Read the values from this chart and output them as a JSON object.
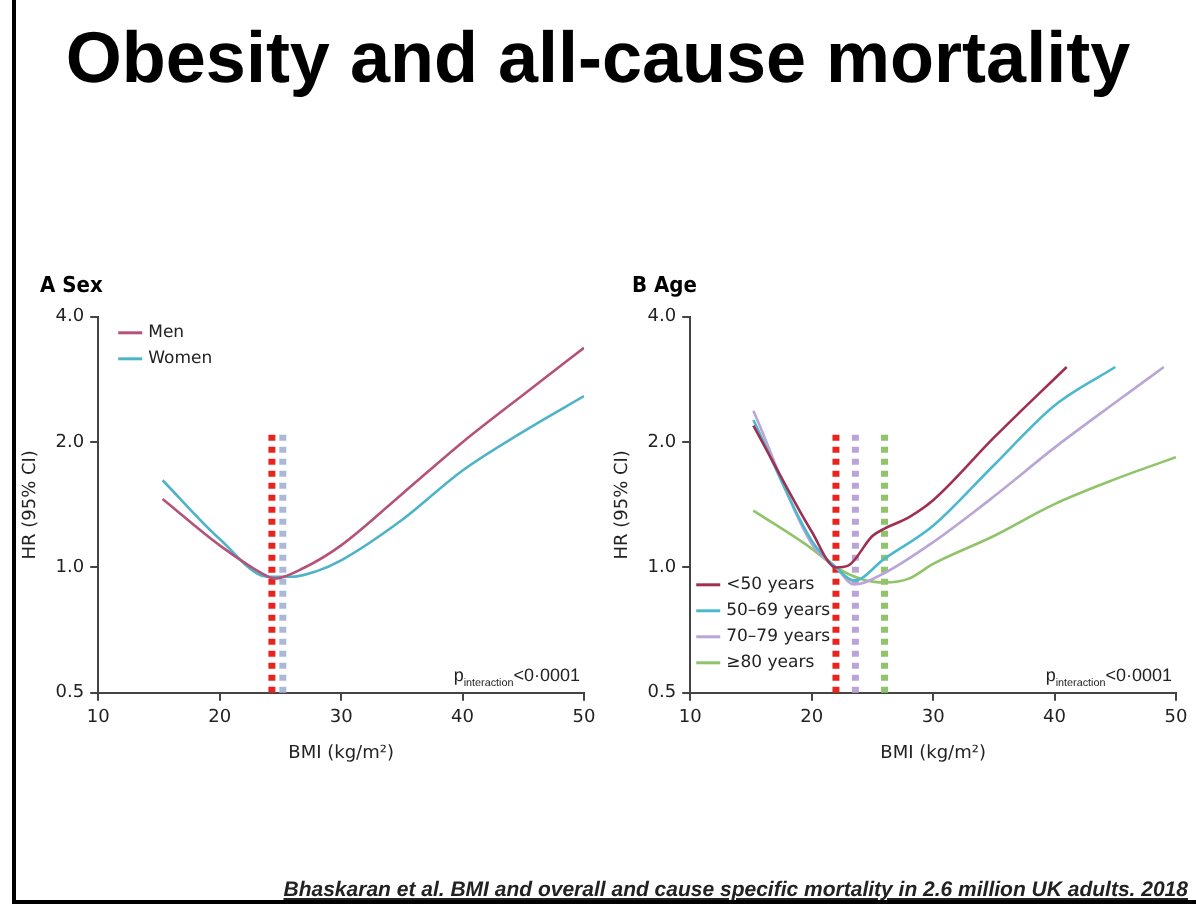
{
  "chart_data": [
    {
      "type": "line",
      "title": "Obesity and all-cause mortality",
      "subtitle": "A  Sex",
      "xlabel": "BMI (kg/m²)",
      "ylabel": "HR (95% CI)",
      "xlim": [
        10,
        50
      ],
      "xticks": [
        10,
        20,
        30,
        40,
        50
      ],
      "ylim": [
        0.5,
        4.0
      ],
      "yticks": [
        {
          "value": 0.5,
          "label": "0.5"
        },
        {
          "value": 1.0,
          "label": "1.0"
        },
        {
          "value": 2.0,
          "label": "2.0"
        },
        {
          "value": 4.0,
          "label": "4.0"
        }
      ],
      "log": "y",
      "grid": false,
      "legend": "top left",
      "marker": "none",
      "line_style": "solid",
      "series": [
        {
          "name": "Men",
          "color": "#b5527a",
          "x": [
            15.3,
            20,
            24,
            24.5,
            27,
            30,
            35,
            40,
            45,
            50
          ],
          "values": [
            1.46,
            1.13,
            0.95,
            0.94,
            1.0,
            1.13,
            1.5,
            2.0,
            2.6,
            3.37
          ]
        },
        {
          "name": "Women",
          "color": "#4fb3c8",
          "x": [
            15.3,
            20,
            24,
            26,
            28,
            30,
            35,
            40,
            45,
            50
          ],
          "values": [
            1.62,
            1.17,
            0.95,
            0.95,
            0.98,
            1.04,
            1.3,
            1.71,
            2.12,
            2.58
          ]
        }
      ],
      "ref_lines": [
        {
          "axis": "x",
          "value": 24.3,
          "color": "#e8241e",
          "line_style": "dotted"
        },
        {
          "axis": "x",
          "value": 25.2,
          "color": "#a9b9d6",
          "line_style": "dotted"
        }
      ],
      "annotations": [
        "p$_{interaction}$<0·0001"
      ]
    },
    {
      "type": "line",
      "subtitle": "B  Age",
      "xlabel": "BMI (kg/m²)",
      "ylabel": "HR (95% CI)",
      "xlim": [
        10,
        50
      ],
      "xticks": [
        10,
        20,
        30,
        40,
        50
      ],
      "ylim": [
        0.5,
        4.0
      ],
      "yticks": [
        {
          "value": 0.5,
          "label": "0.5"
        },
        {
          "value": 1.0,
          "label": "1.0"
        },
        {
          "value": 2.0,
          "label": "2.0"
        },
        {
          "value": 4.0,
          "label": "4.0"
        }
      ],
      "log": "y",
      "grid": false,
      "legend": "bottom left",
      "marker": "none",
      "line_style": "solid",
      "series": [
        {
          "name": "<50 years",
          "color": "#a0304f",
          "x": [
            15.2,
            20,
            22,
            23,
            25,
            26,
            28,
            30,
            35,
            41
          ],
          "values": [
            2.19,
            1.22,
            1.0,
            1.01,
            1.19,
            1.24,
            1.32,
            1.45,
            2.05,
            3.03
          ]
        },
        {
          "name": "50–69 years",
          "color": "#4cb8cc",
          "x": [
            15.2,
            20,
            22,
            23.5,
            26,
            30,
            35,
            40,
            45
          ],
          "values": [
            2.26,
            1.16,
            1.0,
            0.93,
            1.05,
            1.26,
            1.76,
            2.45,
            3.03
          ]
        },
        {
          "name": "70–79 years",
          "color": "#b9a5d6",
          "x": [
            15.2,
            20,
            22,
            23.5,
            26,
            30,
            35,
            40,
            45,
            49
          ],
          "values": [
            2.38,
            1.14,
            1.0,
            0.91,
            0.97,
            1.15,
            1.48,
            1.94,
            2.49,
            3.03
          ]
        },
        {
          "name": "≥80 years",
          "color": "#8fc46a",
          "x": [
            15.2,
            20,
            22,
            24,
            26,
            28,
            30,
            35,
            40,
            45,
            50
          ],
          "values": [
            1.37,
            1.11,
            1.0,
            0.94,
            0.92,
            0.94,
            1.02,
            1.19,
            1.42,
            1.63,
            1.84
          ]
        }
      ],
      "ref_lines": [
        {
          "axis": "x",
          "value": 22.0,
          "color": "#e8241e",
          "line_style": "dotted"
        },
        {
          "axis": "x",
          "value": 23.6,
          "color": "#b9a5d6",
          "line_style": "dotted"
        },
        {
          "axis": "x",
          "value": 26.0,
          "color": "#8fc46a",
          "line_style": "dotted"
        }
      ],
      "annotations": [
        "p$_{interaction}$<0·0001",
        "Bhaskaran et al. BMI and overall and cause specific mortality in 2.6 million UK adults. 2018"
      ]
    }
  ]
}
